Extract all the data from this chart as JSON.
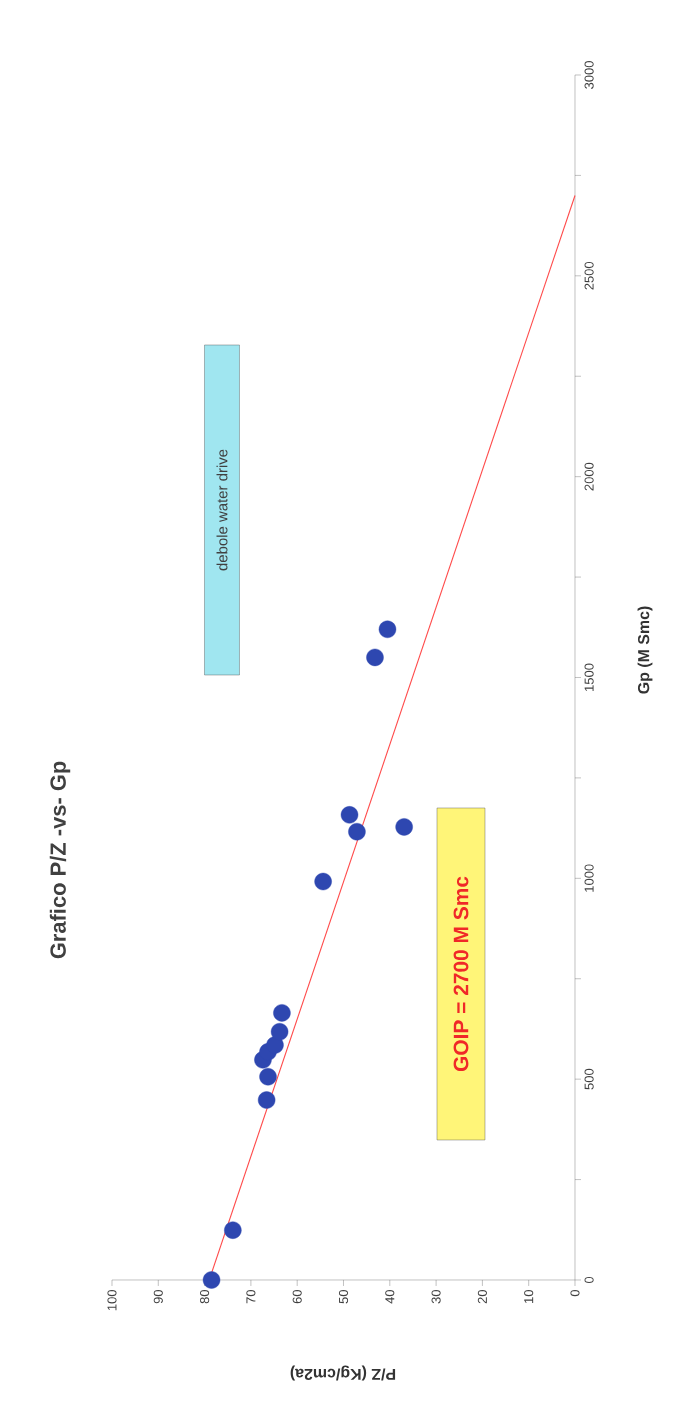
{
  "chart_data": {
    "type": "scatter",
    "title": "Grafico P/Z -vs- Gp",
    "xlabel": "P/Z (Kg/cm2a)",
    "ylabel": "Gp (M Smc)",
    "series": [
      {
        "color": "#2e47b0",
        "marker": "circle",
        "x": [
          78.5,
          73.9,
          66.6,
          66.3,
          67.4,
          66.3,
          64.8,
          63.8,
          63.3,
          54.4,
          47.1,
          36.9,
          48.7,
          43.2,
          40.5
        ],
        "values": [
          0,
          124,
          448,
          506,
          548,
          568,
          585,
          618,
          665,
          992,
          1116,
          1128,
          1158,
          1550,
          1620
        ]
      },
      {
        "type": "line",
        "color": "#ff4a4a",
        "marker": "none",
        "line_style": "solid",
        "x": [
          79,
          0
        ],
        "values": [
          0,
          2700
        ]
      }
    ],
    "annotations": [
      "debole water drive",
      "GOIP = 2700 M Smc"
    ],
    "xlim": [
      100,
      0
    ],
    "ylim": [
      0,
      3000
    ],
    "xticks": [
      0,
      10,
      20,
      30,
      40,
      50,
      60,
      70,
      80,
      90,
      100
    ],
    "yticks": [
      0,
      {
        "value": 250,
        "label": null
      },
      500,
      {
        "value": 750,
        "label": null
      },
      1000,
      {
        "value": 1250,
        "label": null
      },
      1500,
      {
        "value": 1750,
        "label": null
      },
      2000,
      {
        "value": 2250,
        "label": null
      },
      2500,
      {
        "value": 2750,
        "label": null
      },
      3000
    ]
  }
}
